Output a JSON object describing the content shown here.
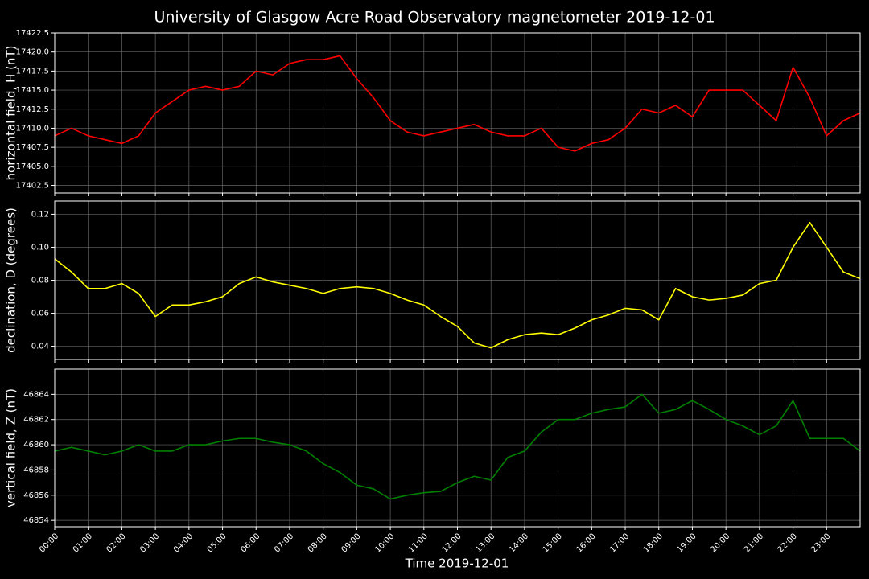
{
  "chart_data": {
    "type": "line",
    "title": "University of Glasgow Acre Road Observatory magnetometer 2019-12-01",
    "x_label": "Time 2019-12-01",
    "grid": true,
    "xlim": [
      0,
      24
    ],
    "xticks": [
      {
        "value": 0,
        "label": "00:00"
      },
      {
        "value": 1,
        "label": "01:00"
      },
      {
        "value": 2,
        "label": "02:00"
      },
      {
        "value": 3,
        "label": "03:00"
      },
      {
        "value": 4,
        "label": "04:00"
      },
      {
        "value": 5,
        "label": "05:00"
      },
      {
        "value": 6,
        "label": "06:00"
      },
      {
        "value": 7,
        "label": "07:00"
      },
      {
        "value": 8,
        "label": "08:00"
      },
      {
        "value": 9,
        "label": "09:00"
      },
      {
        "value": 10,
        "label": "10:00"
      },
      {
        "value": 11,
        "label": "11:00"
      },
      {
        "value": 12,
        "label": "12:00"
      },
      {
        "value": 13,
        "label": "13:00"
      },
      {
        "value": 14,
        "label": "14:00"
      },
      {
        "value": 15,
        "label": "15:00"
      },
      {
        "value": 16,
        "label": "16:00"
      },
      {
        "value": 17,
        "label": "17:00"
      },
      {
        "value": 18,
        "label": "18:00"
      },
      {
        "value": 19,
        "label": "19:00"
      },
      {
        "value": 20,
        "label": "20:00"
      },
      {
        "value": 21,
        "label": "21:00"
      },
      {
        "value": 22,
        "label": "22:00"
      },
      {
        "value": 23,
        "label": "23:00"
      }
    ],
    "x": [
      0,
      0.5,
      1,
      1.5,
      2,
      2.5,
      3,
      3.5,
      4,
      4.5,
      5,
      5.5,
      6,
      6.5,
      7,
      7.5,
      8,
      8.5,
      9,
      9.5,
      10,
      10.5,
      11,
      11.5,
      12,
      12.5,
      13,
      13.5,
      14,
      14.5,
      15,
      15.5,
      16,
      16.5,
      17,
      17.5,
      18,
      18.5,
      19,
      19.5,
      20,
      20.5,
      21,
      21.5,
      22,
      22.5,
      23,
      23.5,
      24
    ],
    "panels": [
      {
        "y_label": "horizontal field, H (nT)",
        "color": "#ff0000",
        "ylim": [
          17401.5,
          17422.5
        ],
        "yticks": [
          17402.5,
          {
            "value": 17405,
            "label": "17405.0"
          },
          17407.5,
          {
            "value": 17410,
            "label": "17410.0"
          },
          17412.5,
          {
            "value": 17415,
            "label": "17415.0"
          },
          17417.5,
          {
            "value": 17420,
            "label": "17420.0"
          },
          17422.5
        ],
        "values": [
          17409,
          17410,
          17409,
          17408.5,
          17408,
          17409,
          17412,
          17413.5,
          17415,
          17415.5,
          17415,
          17415.5,
          17417.5,
          17417,
          17418.5,
          17419,
          17419,
          17419.5,
          17416.5,
          17414,
          17411,
          17409.5,
          17409,
          17409.5,
          17410,
          17410.5,
          17409.5,
          17409,
          17409,
          17410,
          17407.5,
          17407,
          17408,
          17408.5,
          17410,
          17412.5,
          17412,
          17413,
          17411.5,
          17415,
          17415,
          17415,
          17413,
          17411,
          17418,
          17414,
          17409,
          17411,
          17412
        ]
      },
      {
        "y_label": "declination, D (degrees)",
        "color": "#ffff00",
        "ylim": [
          0.032,
          0.128
        ],
        "yticks": [
          0.04,
          0.06,
          0.08,
          {
            "value": 0.1,
            "label": "0.10"
          },
          0.12
        ],
        "values": [
          0.093,
          0.085,
          0.075,
          0.075,
          0.078,
          0.072,
          0.058,
          0.065,
          0.065,
          0.067,
          0.07,
          0.078,
          0.082,
          0.079,
          0.077,
          0.075,
          0.072,
          0.075,
          0.076,
          0.075,
          0.072,
          0.068,
          0.065,
          0.058,
          0.052,
          0.042,
          0.039,
          0.044,
          0.047,
          0.048,
          0.047,
          0.051,
          0.056,
          0.059,
          0.063,
          0.062,
          0.056,
          0.075,
          0.07,
          0.068,
          0.069,
          0.071,
          0.078,
          0.08,
          0.1,
          0.115,
          0.1,
          0.085,
          0.081
        ]
      },
      {
        "y_label": "vertical field, Z (nT)",
        "color": "#008000",
        "ylim": [
          46853.5,
          46866
        ],
        "yticks": [
          46854,
          46856,
          46858,
          46860,
          46862,
          46864
        ],
        "values": [
          46859.5,
          46859.8,
          46859.5,
          46859.2,
          46859.5,
          46860,
          46859.5,
          46859.5,
          46860,
          46860,
          46860.3,
          46860.5,
          46860.5,
          46860.2,
          46860,
          46859.5,
          46858.5,
          46857.8,
          46856.8,
          46856.5,
          46855.7,
          46856,
          46856.2,
          46856.3,
          46857,
          46857.5,
          46857.2,
          46859,
          46859.5,
          46861,
          46862,
          46862,
          46862.5,
          46862.8,
          46863,
          46864,
          46862.5,
          46862.8,
          46863.5,
          46862.8,
          46862,
          46861.5,
          46860.8,
          46861.5,
          46863.5,
          46860.5,
          46860.5,
          46860.5,
          46859.5
        ]
      }
    ]
  }
}
